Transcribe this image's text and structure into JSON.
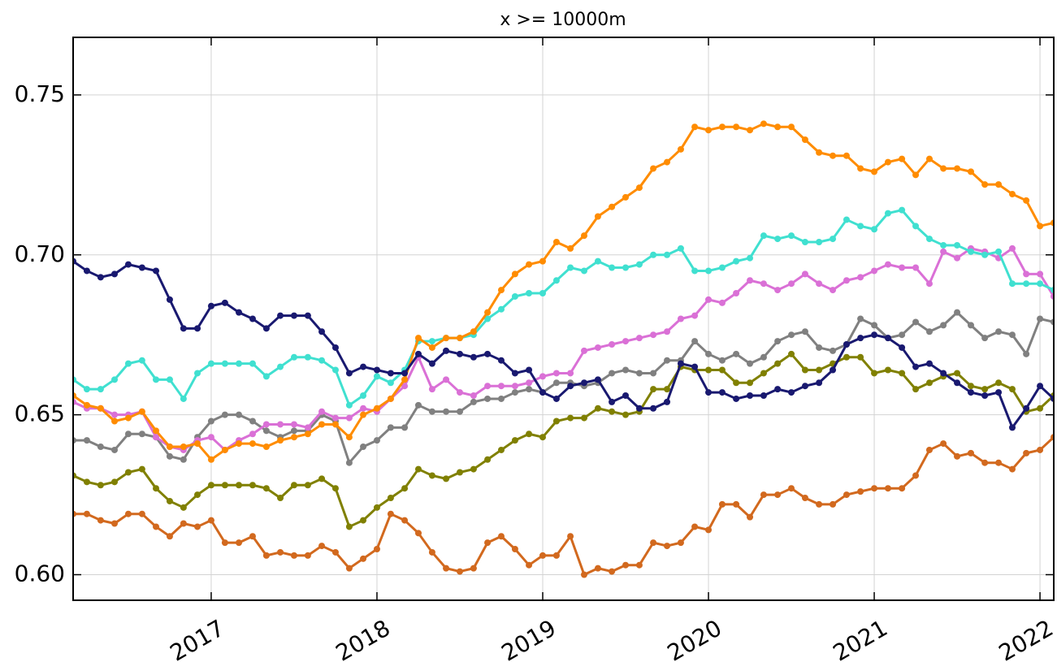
{
  "chart_data": {
    "type": "line",
    "title": "x >= 10000m",
    "x": [
      2016.167,
      2016.25,
      2016.333,
      2016.417,
      2016.5,
      2016.583,
      2016.667,
      2016.75,
      2016.833,
      2016.917,
      2017,
      2017.083,
      2017.167,
      2017.25,
      2017.333,
      2017.417,
      2017.5,
      2017.583,
      2017.667,
      2017.75,
      2017.833,
      2017.917,
      2018,
      2018.083,
      2018.167,
      2018.25,
      2018.333,
      2018.417,
      2018.5,
      2018.583,
      2018.667,
      2018.75,
      2018.833,
      2018.917,
      2019,
      2019.083,
      2019.167,
      2019.25,
      2019.333,
      2019.417,
      2019.5,
      2019.583,
      2019.667,
      2019.75,
      2019.833,
      2019.917,
      2020,
      2020.083,
      2020.167,
      2020.25,
      2020.333,
      2020.417,
      2020.5,
      2020.583,
      2020.667,
      2020.75,
      2020.833,
      2020.917,
      2021,
      2021.083,
      2021.167,
      2021.25,
      2021.333,
      2021.417,
      2021.5,
      2021.583,
      2021.667,
      2021.75,
      2021.833,
      2021.917,
      2022,
      2022.083
    ],
    "series": [
      {
        "color": "#d2691e",
        "values": [
          0.619,
          0.619,
          0.617,
          0.616,
          0.619,
          0.619,
          0.615,
          0.612,
          0.616,
          0.615,
          0.617,
          0.61,
          0.61,
          0.612,
          0.606,
          0.607,
          0.606,
          0.606,
          0.609,
          0.607,
          0.602,
          0.605,
          0.608,
          0.619,
          0.617,
          0.613,
          0.607,
          0.602,
          0.601,
          0.602,
          0.61,
          0.612,
          0.608,
          0.603,
          0.606,
          0.606,
          0.612,
          0.6,
          0.602,
          0.601,
          0.603,
          0.603,
          0.61,
          0.609,
          0.61,
          0.615,
          0.614,
          0.622,
          0.622,
          0.618,
          0.625,
          0.625,
          0.627,
          0.624,
          0.622,
          0.622,
          0.625,
          0.626,
          0.627,
          0.627,
          0.627,
          0.631,
          0.639,
          0.641,
          0.637,
          0.638,
          0.635,
          0.635,
          0.633,
          0.638,
          0.639,
          0.643
        ]
      },
      {
        "color": "#808000",
        "values": [
          0.631,
          0.629,
          0.628,
          0.629,
          0.632,
          0.633,
          0.627,
          0.623,
          0.621,
          0.625,
          0.628,
          0.628,
          0.628,
          0.628,
          0.627,
          0.624,
          0.628,
          0.628,
          0.63,
          0.627,
          0.615,
          0.617,
          0.621,
          0.624,
          0.627,
          0.633,
          0.631,
          0.63,
          0.632,
          0.633,
          0.636,
          0.639,
          0.642,
          0.644,
          0.643,
          0.648,
          0.649,
          0.649,
          0.652,
          0.651,
          0.65,
          0.651,
          0.658,
          0.658,
          0.665,
          0.664,
          0.664,
          0.664,
          0.66,
          0.66,
          0.663,
          0.666,
          0.669,
          0.664,
          0.664,
          0.666,
          0.668,
          0.668,
          0.663,
          0.664,
          0.663,
          0.658,
          0.66,
          0.662,
          0.663,
          0.659,
          0.658,
          0.66,
          0.658,
          0.651,
          0.652,
          0.656
        ]
      },
      {
        "color": "#808080",
        "values": [
          0.642,
          0.642,
          0.64,
          0.639,
          0.644,
          0.644,
          0.643,
          0.637,
          0.636,
          0.643,
          0.648,
          0.65,
          0.65,
          0.648,
          0.645,
          0.643,
          0.645,
          0.645,
          0.65,
          0.648,
          0.635,
          0.64,
          0.642,
          0.646,
          0.646,
          0.653,
          0.651,
          0.651,
          0.651,
          0.654,
          0.655,
          0.655,
          0.657,
          0.658,
          0.657,
          0.66,
          0.66,
          0.659,
          0.66,
          0.663,
          0.664,
          0.663,
          0.663,
          0.667,
          0.667,
          0.673,
          0.669,
          0.667,
          0.669,
          0.666,
          0.668,
          0.673,
          0.675,
          0.676,
          0.671,
          0.67,
          0.672,
          0.68,
          0.678,
          0.674,
          0.675,
          0.679,
          0.676,
          0.678,
          0.682,
          0.678,
          0.674,
          0.676,
          0.675,
          0.669,
          0.68,
          0.679
        ]
      },
      {
        "color": "#da70d6",
        "values": [
          0.654,
          0.652,
          0.652,
          0.65,
          0.65,
          0.651,
          0.643,
          0.64,
          0.639,
          0.642,
          0.643,
          0.639,
          0.642,
          0.644,
          0.647,
          0.647,
          0.647,
          0.646,
          0.651,
          0.649,
          0.649,
          0.652,
          0.651,
          0.655,
          0.659,
          0.668,
          0.658,
          0.661,
          0.657,
          0.656,
          0.659,
          0.659,
          0.659,
          0.66,
          0.662,
          0.663,
          0.663,
          0.67,
          0.671,
          0.672,
          0.673,
          0.674,
          0.675,
          0.676,
          0.68,
          0.681,
          0.686,
          0.685,
          0.688,
          0.692,
          0.691,
          0.689,
          0.691,
          0.694,
          0.691,
          0.689,
          0.692,
          0.693,
          0.695,
          0.697,
          0.696,
          0.696,
          0.691,
          0.701,
          0.699,
          0.702,
          0.701,
          0.699,
          0.702,
          0.694,
          0.694,
          0.687
        ]
      },
      {
        "color": "#40e0d0",
        "values": [
          0.661,
          0.658,
          0.658,
          0.661,
          0.666,
          0.667,
          0.661,
          0.661,
          0.655,
          0.663,
          0.666,
          0.666,
          0.666,
          0.666,
          0.662,
          0.665,
          0.668,
          0.668,
          0.667,
          0.664,
          0.653,
          0.656,
          0.662,
          0.66,
          0.664,
          0.673,
          0.673,
          0.674,
          0.674,
          0.675,
          0.68,
          0.683,
          0.687,
          0.688,
          0.688,
          0.692,
          0.696,
          0.695,
          0.698,
          0.696,
          0.696,
          0.697,
          0.7,
          0.7,
          0.702,
          0.695,
          0.695,
          0.696,
          0.698,
          0.699,
          0.706,
          0.705,
          0.706,
          0.704,
          0.704,
          0.705,
          0.711,
          0.709,
          0.708,
          0.713,
          0.714,
          0.709,
          0.705,
          0.703,
          0.703,
          0.701,
          0.7,
          0.701,
          0.691,
          0.691,
          0.691,
          0.689
        ]
      },
      {
        "color": "#ff8c00",
        "values": [
          0.656,
          0.653,
          0.652,
          0.648,
          0.649,
          0.651,
          0.645,
          0.64,
          0.64,
          0.641,
          0.636,
          0.639,
          0.641,
          0.641,
          0.64,
          0.642,
          0.643,
          0.644,
          0.647,
          0.647,
          0.643,
          0.65,
          0.652,
          0.655,
          0.661,
          0.674,
          0.671,
          0.674,
          0.674,
          0.676,
          0.682,
          0.689,
          0.694,
          0.697,
          0.698,
          0.704,
          0.702,
          0.706,
          0.712,
          0.715,
          0.718,
          0.721,
          0.727,
          0.729,
          0.733,
          0.74,
          0.739,
          0.74,
          0.74,
          0.739,
          0.741,
          0.74,
          0.74,
          0.736,
          0.732,
          0.731,
          0.731,
          0.727,
          0.726,
          0.729,
          0.73,
          0.725,
          0.73,
          0.727,
          0.727,
          0.726,
          0.722,
          0.722,
          0.719,
          0.717,
          0.709,
          0.71
        ]
      },
      {
        "color": "#191970",
        "values": [
          0.698,
          0.695,
          0.693,
          0.694,
          0.697,
          0.696,
          0.695,
          0.686,
          0.677,
          0.677,
          0.684,
          0.685,
          0.682,
          0.68,
          0.677,
          0.681,
          0.681,
          0.681,
          0.676,
          0.671,
          0.663,
          0.665,
          0.664,
          0.663,
          0.663,
          0.669,
          0.666,
          0.67,
          0.669,
          0.668,
          0.669,
          0.667,
          0.663,
          0.664,
          0.657,
          0.655,
          0.659,
          0.66,
          0.661,
          0.654,
          0.656,
          0.652,
          0.652,
          0.654,
          0.666,
          0.665,
          0.657,
          0.657,
          0.655,
          0.656,
          0.656,
          0.658,
          0.657,
          0.659,
          0.66,
          0.664,
          0.672,
          0.674,
          0.675,
          0.674,
          0.671,
          0.665,
          0.666,
          0.663,
          0.66,
          0.657,
          0.656,
          0.657,
          0.646,
          0.652,
          0.659,
          0.655
        ]
      }
    ],
    "xlim": [
      2016.167,
      2022.083
    ],
    "xticks": [
      2017,
      2018,
      2019,
      2020,
      2021,
      2022
    ],
    "ylim": [
      0.592,
      0.768
    ],
    "yticks": [
      {
        "value": 0.6,
        "label": "0.60"
      },
      0.65,
      {
        "value": 0.7,
        "label": "0.70"
      },
      0.75
    ],
    "grid": true
  }
}
